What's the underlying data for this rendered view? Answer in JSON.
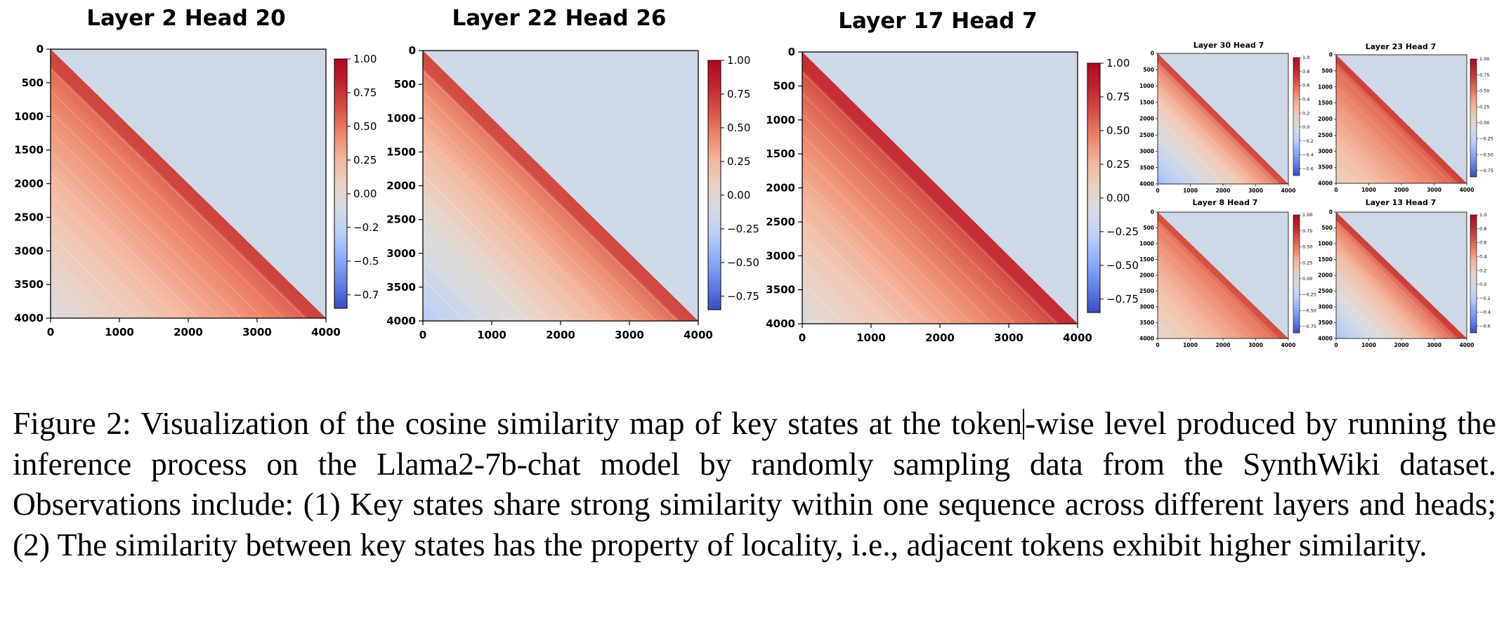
{
  "colors": {
    "cmap": [
      "#3b4cc0",
      "#7396f5",
      "#b5cdfa",
      "#dddddd",
      "#f5c4ac",
      "#ec7f63",
      "#c53334",
      "#b40426"
    ],
    "upper_fill": "#cfd8e6"
  },
  "chart_data": [
    {
      "type": "heatmap",
      "size": "large",
      "title": "Layer 2 Head 20",
      "x_ticks": [
        "0",
        "1000",
        "2000",
        "3000",
        "4000"
      ],
      "y_ticks": [
        "0",
        "500",
        "1000",
        "1500",
        "2000",
        "2500",
        "3000",
        "3500",
        "4000"
      ],
      "colorbar_ticks": [
        {
          "value": 1.0,
          "label": "1.00"
        },
        {
          "value": 0.75,
          "label": "0.75"
        },
        {
          "value": 0.5,
          "label": "0.50"
        },
        {
          "value": 0.25,
          "label": "0.25"
        },
        {
          "value": 0.0,
          "label": "0.00"
        },
        {
          "value": -0.25,
          "label": "−0.2"
        },
        {
          "value": -0.5,
          "label": "−0.5"
        },
        {
          "value": -0.75,
          "label": "−0.7"
        }
      ],
      "colorbar_range": [
        -0.85,
        1.0
      ],
      "diag": 0.62,
      "far": -0.05
    },
    {
      "type": "heatmap",
      "size": "large",
      "title": "Layer 22 Head 26",
      "x_ticks": [
        "0",
        "1000",
        "2000",
        "3000",
        "4000"
      ],
      "y_ticks": [
        "0",
        "500",
        "1000",
        "1500",
        "2000",
        "2500",
        "3000",
        "3500",
        "4000"
      ],
      "colorbar_ticks": [
        {
          "value": 1.0,
          "label": "1.00"
        },
        {
          "value": 0.75,
          "label": "0.75"
        },
        {
          "value": 0.5,
          "label": "0.50"
        },
        {
          "value": 0.25,
          "label": "0.25"
        },
        {
          "value": 0.0,
          "label": "0.00"
        },
        {
          "value": -0.25,
          "label": "−0.25"
        },
        {
          "value": -0.5,
          "label": "−0.50"
        },
        {
          "value": -0.75,
          "label": "−0.75"
        }
      ],
      "colorbar_range": [
        -0.85,
        1.0
      ],
      "diag": 0.6,
      "far": -0.3
    },
    {
      "type": "heatmap",
      "size": "large",
      "title": "Layer 17 Head 7",
      "x_ticks": [
        "0",
        "1000",
        "2000",
        "3000",
        "4000"
      ],
      "y_ticks": [
        "0",
        "500",
        "1000",
        "1500",
        "2000",
        "2500",
        "3000",
        "3500",
        "4000"
      ],
      "colorbar_ticks": [
        {
          "value": 1.0,
          "label": "1.00"
        },
        {
          "value": 0.75,
          "label": "0.75"
        },
        {
          "value": 0.5,
          "label": "0.50"
        },
        {
          "value": 0.25,
          "label": "0.25"
        },
        {
          "value": 0.0,
          "label": "0.00"
        },
        {
          "value": -0.25,
          "label": "−0.25"
        },
        {
          "value": -0.5,
          "label": "−0.50"
        },
        {
          "value": -0.75,
          "label": "−0.75"
        }
      ],
      "colorbar_range": [
        -0.85,
        1.0
      ],
      "diag": 0.72,
      "far": -0.05
    },
    {
      "type": "heatmap",
      "size": "small",
      "title": "Layer 30 Head 7",
      "x_ticks": [
        "0",
        "1000",
        "2000",
        "3000",
        "4000"
      ],
      "y_ticks": [
        "0",
        "500",
        "1000",
        "1500",
        "2000",
        "2500",
        "3000",
        "3500",
        "4000"
      ],
      "colorbar_ticks": [
        {
          "value": 1.0,
          "label": "1.0"
        },
        {
          "value": 0.8,
          "label": "0.8"
        },
        {
          "value": 0.6,
          "label": "0.6"
        },
        {
          "value": 0.4,
          "label": "0.4"
        },
        {
          "value": 0.2,
          "label": "0.2"
        },
        {
          "value": 0.0,
          "label": "0.0"
        },
        {
          "value": -0.2,
          "label": "−0.2"
        },
        {
          "value": -0.4,
          "label": "−0.4"
        },
        {
          "value": -0.6,
          "label": "−0.6"
        }
      ],
      "colorbar_range": [
        -0.7,
        1.0
      ],
      "diag": 0.62,
      "far": -0.3
    },
    {
      "type": "heatmap",
      "size": "small",
      "title": "Layer 23 Head 7",
      "x_ticks": [
        "0",
        "1000",
        "2000",
        "3000",
        "4000"
      ],
      "y_ticks": [
        "0",
        "500",
        "1000",
        "1500",
        "2000",
        "2500",
        "3000",
        "3500",
        "4000"
      ],
      "colorbar_ticks": [
        {
          "value": 1.0,
          "label": "1.00"
        },
        {
          "value": 0.75,
          "label": "0.75"
        },
        {
          "value": 0.5,
          "label": "0.50"
        },
        {
          "value": 0.25,
          "label": "0.25"
        },
        {
          "value": 0.0,
          "label": "0.00"
        },
        {
          "value": -0.25,
          "label": "−0.25"
        },
        {
          "value": -0.5,
          "label": "−0.50"
        },
        {
          "value": -0.75,
          "label": "−0.75"
        }
      ],
      "colorbar_range": [
        -0.85,
        1.0
      ],
      "diag": 0.62,
      "far": 0.08
    },
    {
      "type": "heatmap",
      "size": "small",
      "title": "Layer 8 Head 7",
      "x_ticks": [
        "0",
        "1000",
        "2000",
        "3000",
        "4000"
      ],
      "y_ticks": [
        "0",
        "500",
        "1000",
        "1500",
        "2000",
        "2500",
        "3000",
        "3500",
        "4000"
      ],
      "colorbar_ticks": [
        {
          "value": 1.0,
          "label": "1.00"
        },
        {
          "value": 0.75,
          "label": "0.75"
        },
        {
          "value": 0.5,
          "label": "0.50"
        },
        {
          "value": 0.25,
          "label": "0.25"
        },
        {
          "value": 0.0,
          "label": "0.00"
        },
        {
          "value": -0.25,
          "label": "−0.25"
        },
        {
          "value": -0.5,
          "label": "−0.50"
        },
        {
          "value": -0.75,
          "label": "−0.75"
        }
      ],
      "colorbar_range": [
        -0.85,
        1.0
      ],
      "diag": 0.58,
      "far": 0.02
    },
    {
      "type": "heatmap",
      "size": "small",
      "title": "Layer 13 Head 7",
      "x_ticks": [
        "0",
        "1000",
        "2000",
        "3000",
        "4000"
      ],
      "y_ticks": [
        "0",
        "500",
        "1000",
        "1500",
        "2000",
        "2500",
        "3000",
        "3500",
        "4000"
      ],
      "colorbar_ticks": [
        {
          "value": 1.0,
          "label": "1.0"
        },
        {
          "value": 0.8,
          "label": "0.8"
        },
        {
          "value": 0.6,
          "label": "0.6"
        },
        {
          "value": 0.4,
          "label": "0.4"
        },
        {
          "value": 0.2,
          "label": "0.2"
        },
        {
          "value": 0.0,
          "label": "0.0"
        },
        {
          "value": -0.2,
          "label": "−0.2"
        },
        {
          "value": -0.4,
          "label": "−0.4"
        },
        {
          "value": -0.6,
          "label": "−0.6"
        }
      ],
      "colorbar_range": [
        -0.7,
        1.0
      ],
      "diag": 0.66,
      "far": -0.25
    }
  ],
  "caption": {
    "label": "Figure 2:",
    "part1": "Visualization of the cosine similarity map of key states at the token",
    "part2": "-wise level produced by running the inference process on the Llama2-7b-chat model by randomly sampling data from the SynthWiki dataset. Observations include: (1) Key states share strong similarity within one sequence across different layers and heads; (2) The similarity between key states has the property of locality, i.e., adjacent tokens exhibit higher similarity."
  }
}
